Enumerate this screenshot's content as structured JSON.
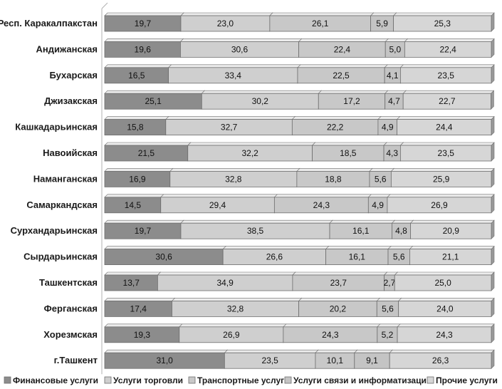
{
  "chart_data": {
    "type": "bar",
    "stacked": true,
    "percent_stacked": true,
    "orientation": "horizontal",
    "title": "",
    "xlabel": "",
    "ylabel": "",
    "xlim": [
      0,
      100
    ],
    "grid": false,
    "legend_position": "bottom",
    "categories": [
      "Респ. Каракалпакстан",
      "Андижанская",
      "Бухарская",
      "Джизакская",
      "Кашкадарьинская",
      "Навоийская",
      "Наманганская",
      "Самаркандская",
      "Сурхандарьинская",
      "Сырдарьинская",
      "Ташкентская",
      "Ферганская",
      "Хорезмская",
      "г.Ташкент"
    ],
    "series": [
      {
        "name": "Финансовые услуги",
        "color": "#8c8c8c",
        "values": [
          19.7,
          19.6,
          16.5,
          25.1,
          15.8,
          21.5,
          16.9,
          14.5,
          19.7,
          30.6,
          13.7,
          17.4,
          19.3,
          31.0
        ],
        "labels": [
          "19,7",
          "19,6",
          "16,5",
          "25,1",
          "15,8",
          "21,5",
          "16,9",
          "14,5",
          "19,7",
          "30,6",
          "13,7",
          "17,4",
          "19,3",
          "31,0"
        ]
      },
      {
        "name": "Услуги торговли",
        "color": "#cfcfcf",
        "values": [
          23.0,
          30.6,
          33.4,
          30.2,
          32.7,
          32.2,
          32.8,
          29.4,
          38.5,
          26.6,
          34.9,
          32.8,
          26.9,
          23.5
        ],
        "labels": [
          "23,0",
          "30,6",
          "33,4",
          "30,2",
          "32,7",
          "32,2",
          "32,8",
          "29,4",
          "38,5",
          "26,6",
          "34,9",
          "32,8",
          "26,9",
          "23,5"
        ]
      },
      {
        "name": "Транспортные услуги",
        "color": "#c8c8c8",
        "values": [
          26.1,
          22.4,
          22.5,
          17.2,
          22.2,
          18.5,
          18.8,
          24.3,
          16.1,
          16.1,
          23.7,
          20.2,
          24.3,
          10.1
        ],
        "labels": [
          "26,1",
          "22,4",
          "22,5",
          "17,2",
          "22,2",
          "18,5",
          "18,8",
          "24,3",
          "16,1",
          "16,1",
          "23,7",
          "20,2",
          "24,3",
          "10,1"
        ]
      },
      {
        "name": "Услуги связи и информатизации",
        "color": "#c4c4c4",
        "values": [
          5.9,
          5.0,
          4.1,
          4.7,
          4.9,
          4.3,
          5.6,
          4.9,
          4.8,
          5.6,
          2.7,
          5.6,
          5.2,
          9.1
        ],
        "labels": [
          "5,9",
          "5,0",
          "4,1",
          "4,7",
          "4,9",
          "4,3",
          "5,6",
          "4,9",
          "4,8",
          "5,6",
          "2,7",
          "5,6",
          "5,2",
          "9,1"
        ]
      },
      {
        "name": "Прочие услуги",
        "color": "#d6d6d6",
        "values": [
          25.3,
          22.4,
          23.5,
          22.7,
          24.4,
          23.5,
          25.9,
          26.9,
          20.9,
          21.1,
          25.0,
          24.0,
          24.3,
          26.3
        ],
        "labels": [
          "25,3",
          "22,4",
          "23,5",
          "22,7",
          "24,4",
          "23,5",
          "25,9",
          "26,9",
          "20,9",
          "21,1",
          "25,0",
          "24,0",
          "24,3",
          "26,3"
        ]
      }
    ]
  },
  "colors": {
    "bar_outline": "#6e6e6e",
    "bar_top_highlight": "#ececec",
    "bar_shadow": "#9a9a9a",
    "axis_line": "#b0b0b0"
  }
}
